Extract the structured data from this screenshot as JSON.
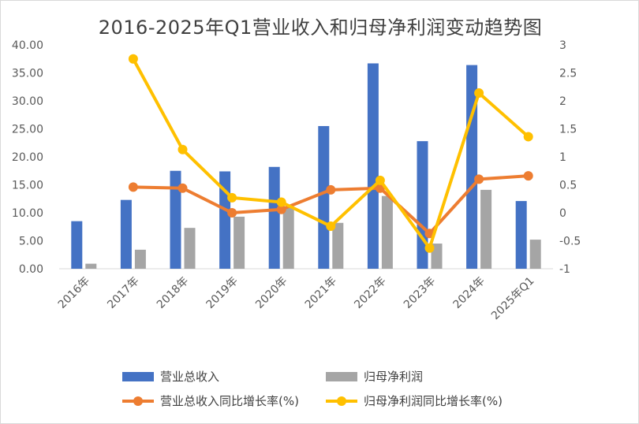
{
  "chart_data": {
    "type": "bar",
    "title": "2016-2025年Q1营业收入和归母净利润变动趋势图",
    "categories": [
      "2016年",
      "2017年",
      "2018年",
      "2019年",
      "2020年",
      "2021年",
      "2022年",
      "2023年",
      "2024年",
      "2025年Q1"
    ],
    "y_left": {
      "min": 0,
      "max": 40,
      "ticks": [
        "0.00",
        "5.00",
        "10.00",
        "15.00",
        "20.00",
        "25.00",
        "30.00",
        "35.00",
        "40.00"
      ]
    },
    "y_right": {
      "min": -1,
      "max": 3,
      "ticks": [
        "-1",
        "-0.5",
        "0",
        "0.5",
        "1",
        "1.5",
        "2",
        "2.5",
        "3"
      ]
    },
    "series": [
      {
        "name": "营业总收入",
        "kind": "bar",
        "axis": "left",
        "color": "#4472C4",
        "values": [
          8.5,
          12.3,
          17.5,
          17.4,
          18.2,
          25.5,
          36.7,
          22.8,
          36.4,
          12.1
        ]
      },
      {
        "name": "归母净利润",
        "kind": "bar",
        "axis": "left",
        "color": "#A5A5A5",
        "values": [
          0.9,
          3.4,
          7.3,
          9.3,
          11.0,
          8.2,
          13.0,
          4.5,
          14.1,
          5.2
        ]
      },
      {
        "name": "营业总收入同比增长率(%)",
        "kind": "line",
        "axis": "right",
        "color": "#ED7D31",
        "values": [
          null,
          0.46,
          0.44,
          0.0,
          0.06,
          0.41,
          0.44,
          -0.37,
          0.6,
          0.66
        ]
      },
      {
        "name": "归母净利润同比增长率(%)",
        "kind": "line",
        "axis": "right",
        "color": "#FFC000",
        "values": [
          null,
          2.75,
          1.13,
          0.27,
          0.19,
          -0.24,
          0.58,
          -0.63,
          2.14,
          1.36
        ]
      }
    ],
    "grid": false,
    "legend_position": "bottom"
  }
}
